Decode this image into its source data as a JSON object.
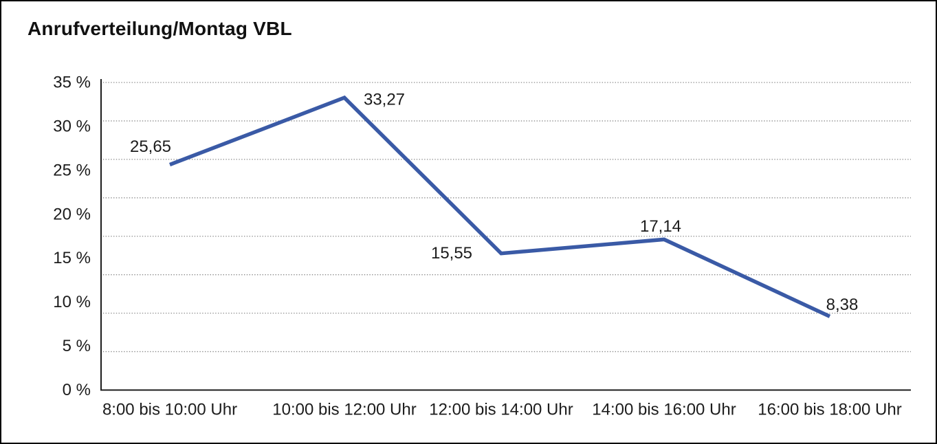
{
  "window": {
    "background": "#ffffff",
    "frame_color": "#000000"
  },
  "header": {
    "title": "Anrufverteilung/Montag VBL"
  },
  "chart_data": {
    "type": "line",
    "title": "Anrufverteilung/Montag VBL",
    "categories": [
      "8:00 bis 10:00 Uhr",
      "10:00 bis 12:00 Uhr",
      "12:00 bis 14:00 Uhr",
      "14:00 bis 16:00 Uhr",
      "16:00 bis 18:00 Uhr"
    ],
    "values": [
      25.65,
      33.27,
      15.55,
      17.14,
      8.38
    ],
    "value_labels": [
      "25,65",
      "33,27",
      "15,55",
      "17,14",
      "8,38"
    ],
    "decimal_separator": ",",
    "y_tick_labels": [
      "35 %",
      "30 %",
      "25 %",
      "20 %",
      "15 %",
      "10 %",
      "5 %",
      "0 %"
    ],
    "y_tick_values": [
      35,
      30,
      25,
      20,
      15,
      10,
      5,
      0
    ],
    "ylim": [
      0,
      35
    ],
    "xlabel": "",
    "ylabel": "",
    "legend": "none",
    "grid": "horizontal-dotted",
    "gridline_intervals": 8,
    "line_color": "#3a5aa6",
    "gridline_color": "#8a8a8a",
    "axis_color": "#1c1c1c",
    "text_color": "#1c1c1c"
  }
}
